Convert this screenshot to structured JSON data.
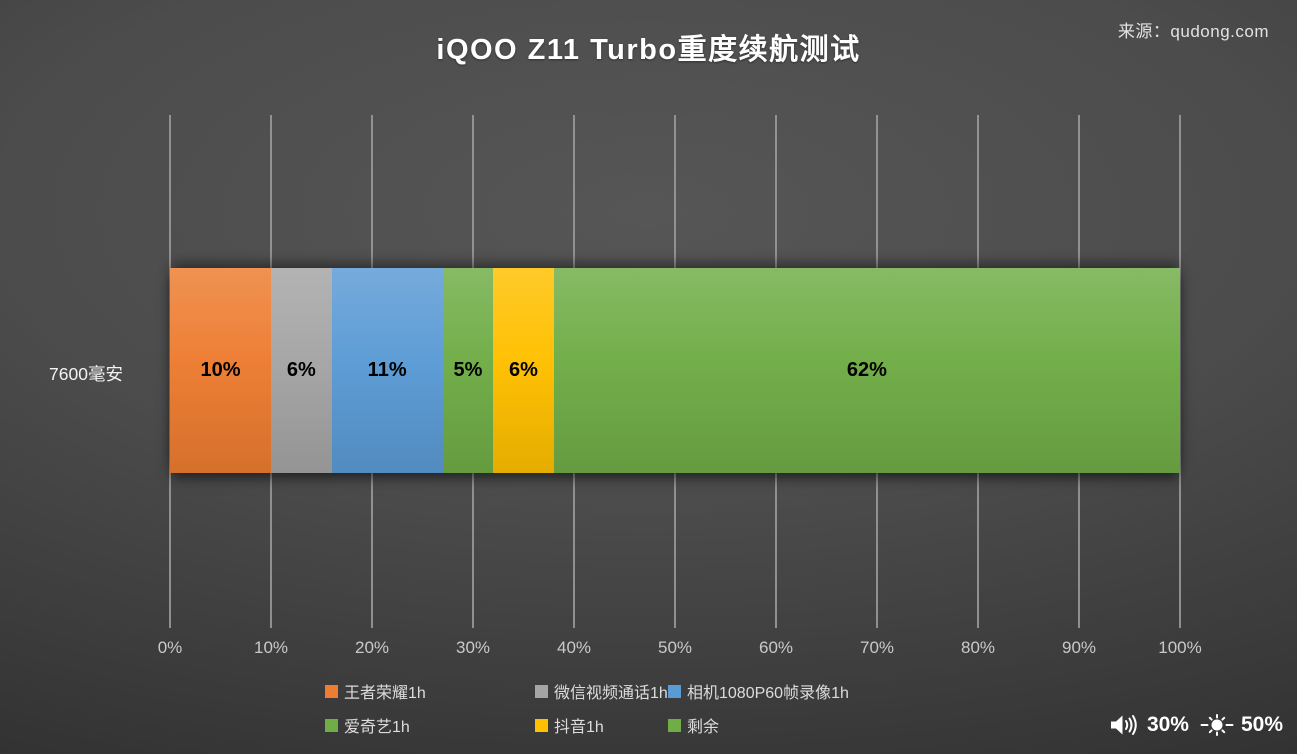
{
  "header": {
    "title": "iQOO Z11 Turbo重度续航测试",
    "source": "来源：qudong.com"
  },
  "chart_data": {
    "type": "bar",
    "stacked": true,
    "orientation": "horizontal",
    "category": "7600毫安",
    "series": [
      {
        "name": "王者荣耀1h",
        "value": 10,
        "label": "10%",
        "color": "#ED7D31"
      },
      {
        "name": "微信视频通话1h",
        "value": 6,
        "label": "6%",
        "color": "#A5A5A5"
      },
      {
        "name": "相机1080P60帧录像1h",
        "value": 11,
        "label": "11%",
        "color": "#5B9BD5"
      },
      {
        "name": "爱奇艺1h",
        "value": 5,
        "label": "5%",
        "color": "#70AD47"
      },
      {
        "name": "抖音1h",
        "value": 6,
        "label": "6%",
        "color": "#FFC000"
      },
      {
        "name": "剩余",
        "value": 62,
        "label": "62%",
        "color": "#70AD47"
      }
    ],
    "x_ticks": [
      "0%",
      "10%",
      "20%",
      "30%",
      "40%",
      "50%",
      "60%",
      "70%",
      "80%",
      "90%",
      "100%"
    ],
    "xlim": [
      0,
      100
    ],
    "grid": true,
    "legend_position": "bottom"
  },
  "status_bar": {
    "volume": "30%",
    "brightness": "50%"
  }
}
